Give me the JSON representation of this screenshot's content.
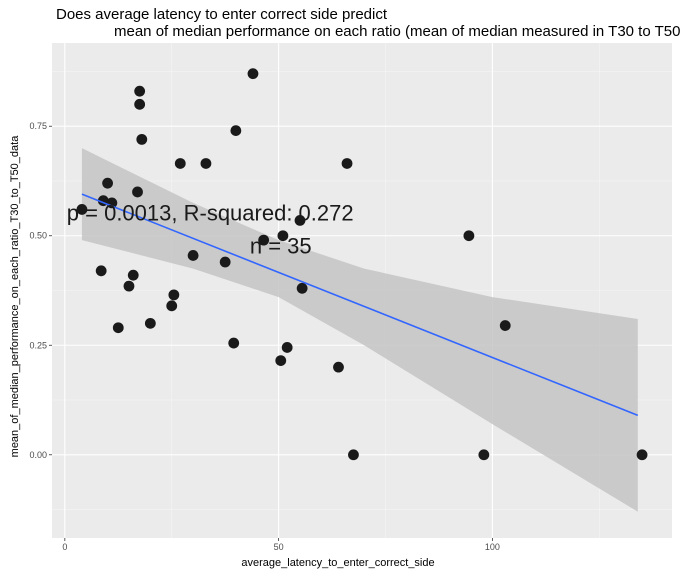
{
  "chart_data": {
    "type": "scatter",
    "title_line1": "Does average latency to enter correct side predict",
    "title_line2": "mean of median performance on each ratio (mean of median measured in T30 to T50",
    "xlabel": "average_latency_to_enter_correct_side",
    "ylabel": "mean_of_median_performance_on_each_ratio_T30_to_T50_data",
    "xlim": [
      -3,
      142
    ],
    "ylim": [
      -0.19,
      0.94
    ],
    "x_ticks": [
      0,
      50,
      100
    ],
    "y_ticks": [
      0.0,
      0.25,
      0.5,
      0.75
    ],
    "y_tick_labels": [
      "0.00",
      "0.25",
      "0.50",
      "0.75"
    ],
    "grid": true,
    "annotation_p": "p = 0.0013, R-squared:  0.272",
    "annotation_n": "n = 35",
    "annotation_p_at": [
      34,
      0.535
    ],
    "annotation_n_at": [
      50.5,
      0.46
    ],
    "points": [
      {
        "x": 4,
        "y": 0.56
      },
      {
        "x": 8.5,
        "y": 0.42
      },
      {
        "x": 9,
        "y": 0.58
      },
      {
        "x": 10,
        "y": 0.62
      },
      {
        "x": 11,
        "y": 0.575
      },
      {
        "x": 12.5,
        "y": 0.29
      },
      {
        "x": 15,
        "y": 0.385
      },
      {
        "x": 16,
        "y": 0.41
      },
      {
        "x": 17,
        "y": 0.6
      },
      {
        "x": 17.5,
        "y": 0.83
      },
      {
        "x": 17.5,
        "y": 0.8
      },
      {
        "x": 18,
        "y": 0.72
      },
      {
        "x": 20,
        "y": 0.3
      },
      {
        "x": 25,
        "y": 0.34
      },
      {
        "x": 25.5,
        "y": 0.365
      },
      {
        "x": 27,
        "y": 0.665
      },
      {
        "x": 30,
        "y": 0.455
      },
      {
        "x": 33,
        "y": 0.665
      },
      {
        "x": 37.5,
        "y": 0.44
      },
      {
        "x": 39.5,
        "y": 0.255
      },
      {
        "x": 40,
        "y": 0.74
      },
      {
        "x": 44,
        "y": 0.87
      },
      {
        "x": 46.5,
        "y": 0.49
      },
      {
        "x": 50.5,
        "y": 0.215
      },
      {
        "x": 51,
        "y": 0.5
      },
      {
        "x": 52,
        "y": 0.245
      },
      {
        "x": 55,
        "y": 0.535
      },
      {
        "x": 55.5,
        "y": 0.38
      },
      {
        "x": 64,
        "y": 0.2
      },
      {
        "x": 66,
        "y": 0.665
      },
      {
        "x": 67.5,
        "y": 0.0
      },
      {
        "x": 94.5,
        "y": 0.5
      },
      {
        "x": 98,
        "y": 0.0
      },
      {
        "x": 103,
        "y": 0.295
      },
      {
        "x": 135,
        "y": 0.0
      }
    ],
    "fit": {
      "x0": 4,
      "y0": 0.595,
      "x1": 134,
      "y1": 0.09
    },
    "ci_upper": [
      {
        "x": 4,
        "y": 0.7
      },
      {
        "x": 30,
        "y": 0.575
      },
      {
        "x": 50,
        "y": 0.49
      },
      {
        "x": 70,
        "y": 0.425
      },
      {
        "x": 100,
        "y": 0.36
      },
      {
        "x": 134,
        "y": 0.31
      }
    ],
    "ci_lower": [
      {
        "x": 4,
        "y": 0.49
      },
      {
        "x": 30,
        "y": 0.425
      },
      {
        "x": 50,
        "y": 0.36
      },
      {
        "x": 70,
        "y": 0.25
      },
      {
        "x": 100,
        "y": 0.07
      },
      {
        "x": 134,
        "y": -0.13
      }
    ],
    "colors": {
      "panel": "#ebebeb",
      "grid_major": "#ffffff",
      "grid_minor": "#f5f5f5",
      "point": "#1a1a1a",
      "fit_line": "#3366ff",
      "ci_fill": "#c4c4c4"
    }
  }
}
